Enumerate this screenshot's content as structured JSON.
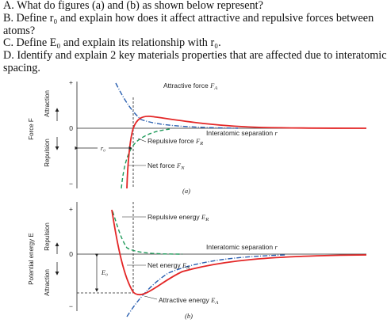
{
  "question": {
    "line_a": "A. What do figures (a) and (b) as shown below represent?",
    "line_b1": "B. Define r₀ and explain how does it affect attractive and repulsive forces between",
    "line_b2": "atoms?",
    "line_c": "C. Define E₀ and explain its relationship with r₀.",
    "line_d1": "D. Identify and explain 2 key materials properties that are affected due to interatomic",
    "line_d2": "spacing."
  },
  "figure_a": {
    "label": "(a)",
    "y_plus": "+",
    "y_zero": "0",
    "y_minus": "−",
    "axis_attraction": "Attraction",
    "axis_force": "Force F",
    "axis_repulsion": "Repulsion",
    "attractive_force_text": "Attractive force ",
    "attractive_force_sym": "F",
    "attractive_force_sub": "A",
    "separation_text": "Interatomic separation ",
    "separation_sym": "r",
    "repulsive_force_text": "Repulsive force ",
    "repulsive_force_sym": "F",
    "repulsive_force_sub": "R",
    "net_force_text": "Net force ",
    "net_force_sym": "F",
    "net_force_sub": "N",
    "r0_label": "r₀"
  },
  "figure_b": {
    "label": "(b)",
    "y_plus": "+",
    "y_zero": "0",
    "y_minus": "−",
    "axis_potential": "Potential energy E",
    "axis_repulsion": "Repulsion",
    "axis_attraction": "Attraction",
    "repulsive_energy_text": "Repulsive energy ",
    "repulsive_energy_sym": "E",
    "repulsive_energy_sub": "R",
    "separation_text": "Interatomic separation ",
    "separation_sym": "r",
    "net_energy_text": "Net energy ",
    "net_energy_sym": "E",
    "net_energy_sub": "N",
    "attractive_energy_text": "Attractive energy ",
    "attractive_energy_sym": "E",
    "attractive_energy_sub": "A",
    "e0_label": "E₀"
  },
  "colors": {
    "net_curve": "#e32626",
    "attractive_curve": "#2a5fb0",
    "repulsive_curve": "#1f9a5a",
    "axis": "#222222"
  }
}
